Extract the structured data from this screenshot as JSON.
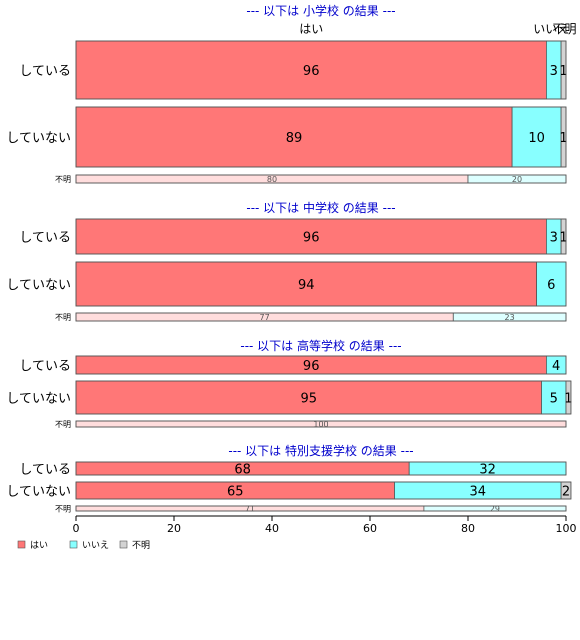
{
  "chart_data": {
    "type": "bar",
    "orientation": "horizontal",
    "stacked": true,
    "xlim": [
      0,
      100
    ],
    "x_ticks": [
      "0",
      "20",
      "40",
      "60",
      "80",
      "100"
    ],
    "column_headers": [
      "はい",
      "いいえ",
      "不明"
    ],
    "legend": {
      "position": "bottom-left",
      "items": [
        {
          "label": "はい",
          "color": "#ff7777"
        },
        {
          "label": "いいえ",
          "color": "#88ffff"
        },
        {
          "label": "不明",
          "color": "#d3d3d3"
        }
      ]
    },
    "panels": [
      {
        "title": "--- 以下は 小学校 の結果 ---",
        "rows": [
          {
            "label": "している",
            "values": [
              96,
              3,
              1
            ],
            "value_labels": [
              "96",
              "3",
              "1"
            ]
          },
          {
            "label": "していない",
            "values": [
              89,
              10,
              1
            ],
            "value_labels": [
              "89",
              "10",
              "1"
            ]
          },
          {
            "label": "不明",
            "values": [
              80,
              20,
              0
            ],
            "value_labels": [
              "80",
              "20",
              ""
            ]
          }
        ]
      },
      {
        "title": "--- 以下は 中学校 の結果 ---",
        "rows": [
          {
            "label": "している",
            "values": [
              96,
              3,
              1
            ],
            "value_labels": [
              "96",
              "3",
              "1"
            ]
          },
          {
            "label": "していない",
            "values": [
              94,
              6,
              0
            ],
            "value_labels": [
              "94",
              "6",
              ""
            ]
          },
          {
            "label": "不明",
            "values": [
              77,
              23,
              0
            ],
            "value_labels": [
              "77",
              "23",
              ""
            ]
          }
        ]
      },
      {
        "title": "--- 以下は 高等学校 の結果 ---",
        "rows": [
          {
            "label": "している",
            "values": [
              96,
              4,
              0
            ],
            "value_labels": [
              "96",
              "4",
              ""
            ]
          },
          {
            "label": "していない",
            "values": [
              95,
              5,
              1
            ],
            "value_labels": [
              "95",
              "5",
              "1"
            ]
          },
          {
            "label": "不明",
            "values": [
              100,
              0,
              0
            ],
            "value_labels": [
              "100",
              "",
              ""
            ]
          }
        ]
      },
      {
        "title": "--- 以下は 特別支援学校 の結果 ---",
        "rows": [
          {
            "label": "している",
            "values": [
              68,
              32,
              0
            ],
            "value_labels": [
              "68",
              "32",
              ""
            ]
          },
          {
            "label": "していない",
            "values": [
              65,
              34,
              2
            ],
            "value_labels": [
              "65",
              "34",
              "2"
            ]
          },
          {
            "label": "不明",
            "values": [
              71,
              29,
              0
            ],
            "value_labels": [
              "71",
              "29",
              ""
            ]
          }
        ]
      }
    ]
  }
}
